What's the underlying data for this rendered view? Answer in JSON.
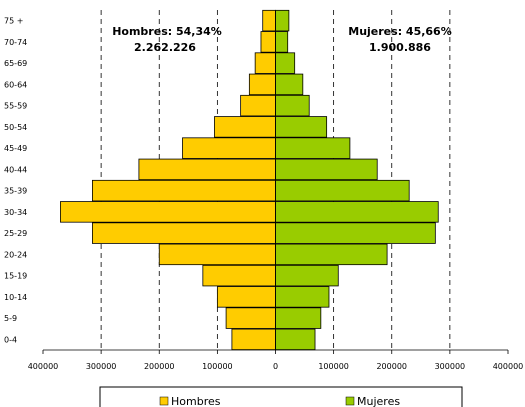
{
  "chart_data": {
    "type": "bar",
    "orientation": "horizontal-pyramid",
    "categories": [
      "0-4",
      "5-9",
      "10-14",
      "15-19",
      "20-24",
      "25-29",
      "30-34",
      "35-39",
      "40-44",
      "45-49",
      "50-54",
      "55-59",
      "60-64",
      "65-69",
      "70-74",
      "75 +"
    ],
    "series": [
      {
        "name": "Hombres",
        "color": "#FFCC00",
        "values": [
          75000,
          85000,
          100000,
          125000,
          200000,
          315000,
          370000,
          315000,
          235000,
          160000,
          105000,
          60000,
          45000,
          35000,
          25000,
          22000
        ]
      },
      {
        "name": "Mujeres",
        "color": "#99CC00",
        "values": [
          68000,
          78000,
          92000,
          108000,
          192000,
          275000,
          280000,
          230000,
          175000,
          128000,
          88000,
          58000,
          47000,
          33000,
          21000,
          23000
        ]
      }
    ],
    "xlim": [
      -400000,
      400000
    ],
    "x_ticks": [
      "400000",
      "300000",
      "200000",
      "100000",
      "0",
      "100000",
      "200000",
      "300000",
      "400000"
    ],
    "x_tick_values": [
      -400000,
      -300000,
      -200000,
      -100000,
      0,
      100000,
      200000,
      300000,
      400000
    ],
    "grid": "vertical dashed",
    "annotations": {
      "men_line1": "Hombres: 54,34%",
      "men_line2": "2.262.226",
      "women_line1": "Mujeres: 45,66%",
      "women_line2": "1.900.886"
    },
    "legend": {
      "position": "bottom",
      "items": [
        "Hombres",
        "Mujeres"
      ]
    }
  }
}
